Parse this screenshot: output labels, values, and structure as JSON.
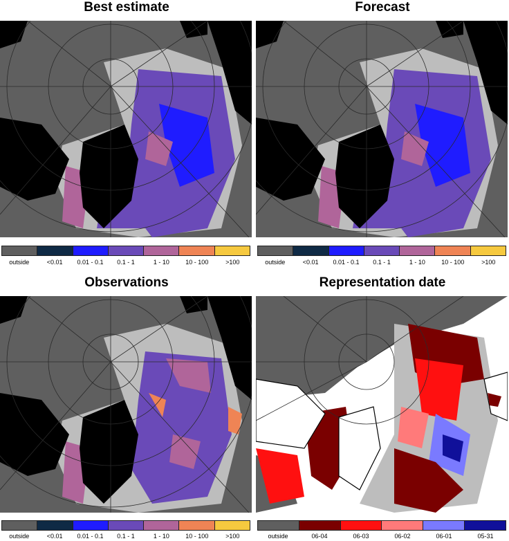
{
  "panels": [
    {
      "title": "Best estimate",
      "legend": [
        {
          "label": "outside",
          "color": "#5f5f5f"
        },
        {
          "label": "<0.01",
          "color": "#0f2a45"
        },
        {
          "label": "0.01 - 0.1",
          "color": "#1f1cff"
        },
        {
          "label": "0.1 - 1",
          "color": "#6a4ab8"
        },
        {
          "label": "1 - 10",
          "color": "#b0659a"
        },
        {
          "label": "10 - 100",
          "color": "#ef8455"
        },
        {
          "label": ">100",
          "color": "#f6c93f"
        }
      ]
    },
    {
      "title": "Forecast",
      "legend": [
        {
          "label": "outside",
          "color": "#5f5f5f"
        },
        {
          "label": "<0.01",
          "color": "#0f2a45"
        },
        {
          "label": "0.01 - 0.1",
          "color": "#1f1cff"
        },
        {
          "label": "0.1 - 1",
          "color": "#6a4ab8"
        },
        {
          "label": "1 - 10",
          "color": "#b0659a"
        },
        {
          "label": "10 - 100",
          "color": "#ef8455"
        },
        {
          "label": ">100",
          "color": "#f6c93f"
        }
      ]
    },
    {
      "title": "Observations",
      "legend": [
        {
          "label": "outside",
          "color": "#5f5f5f"
        },
        {
          "label": "<0.01",
          "color": "#0f2a45"
        },
        {
          "label": "0.01 - 0.1",
          "color": "#1f1cff"
        },
        {
          "label": "0.1 - 1",
          "color": "#6a4ab8"
        },
        {
          "label": "1 - 10",
          "color": "#b0659a"
        },
        {
          "label": "10 - 100",
          "color": "#ef8455"
        },
        {
          "label": ">100",
          "color": "#f6c93f"
        }
      ]
    },
    {
      "title": "Representation date",
      "legend": [
        {
          "label": "outside",
          "color": "#5f5f5f"
        },
        {
          "label": "06-04",
          "color": "#7a0000"
        },
        {
          "label": "06-03",
          "color": "#ff1010"
        },
        {
          "label": "06-02",
          "color": "#ff7a7a"
        },
        {
          "label": "06-01",
          "color": "#7a7aff"
        },
        {
          "label": "05-31",
          "color": "#10109a"
        }
      ]
    }
  ],
  "colors": {
    "outside": "#5f5f5f",
    "land": "#000000",
    "no_data": "#bdbdbd",
    "ocean_white": "#ffffff",
    "grid_line": "#2a2a2a"
  }
}
